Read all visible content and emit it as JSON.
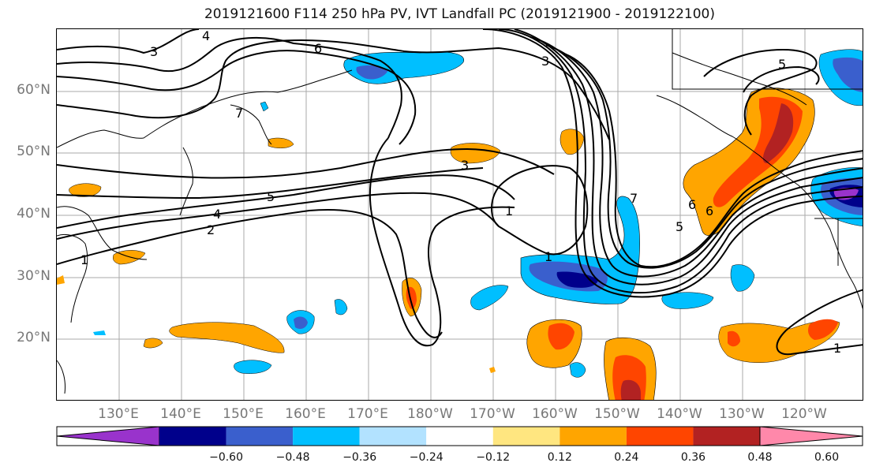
{
  "title": "2019121600 F114 250 hPa PV, IVT Landfall PC (2019121900 - 2019122100)",
  "lat_labels": [
    "60°N",
    "50°N",
    "40°N",
    "30°N",
    "20°N"
  ],
  "lon_labels": [
    "130°E",
    "140°E",
    "150°E",
    "160°E",
    "170°E",
    "180°W",
    "170°W",
    "160°W",
    "150°W",
    "140°W",
    "130°W",
    "120°W"
  ],
  "contour_labels": [
    "4",
    "3",
    "6",
    "3",
    "7",
    "5",
    "4",
    "2",
    "1",
    "3",
    "1",
    "1",
    "7",
    "5",
    "6",
    "6",
    "5",
    "1"
  ],
  "colorbar": {
    "ticks": [
      "−0.60",
      "−0.48",
      "−0.36",
      "−0.24",
      "−0.12",
      "0.12",
      "0.24",
      "0.36",
      "0.48",
      "0.60"
    ],
    "colors": [
      "#9933cc",
      "#00008b",
      "#3a5fcd",
      "#00bfff",
      "#b2e2ff",
      "#ffffff",
      "#ffe680",
      "#ffa500",
      "#ff4500",
      "#b22222",
      "#ff88aa"
    ]
  },
  "colors": {
    "neg_1": "#b2e2ff",
    "neg_2": "#00bfff",
    "neg_3": "#3a5fcd",
    "neg_4": "#00008b",
    "neg_5": "#9933cc",
    "pos_1": "#ffe680",
    "pos_2": "#ffa500",
    "pos_3": "#ff4500",
    "pos_4": "#b22222"
  }
}
